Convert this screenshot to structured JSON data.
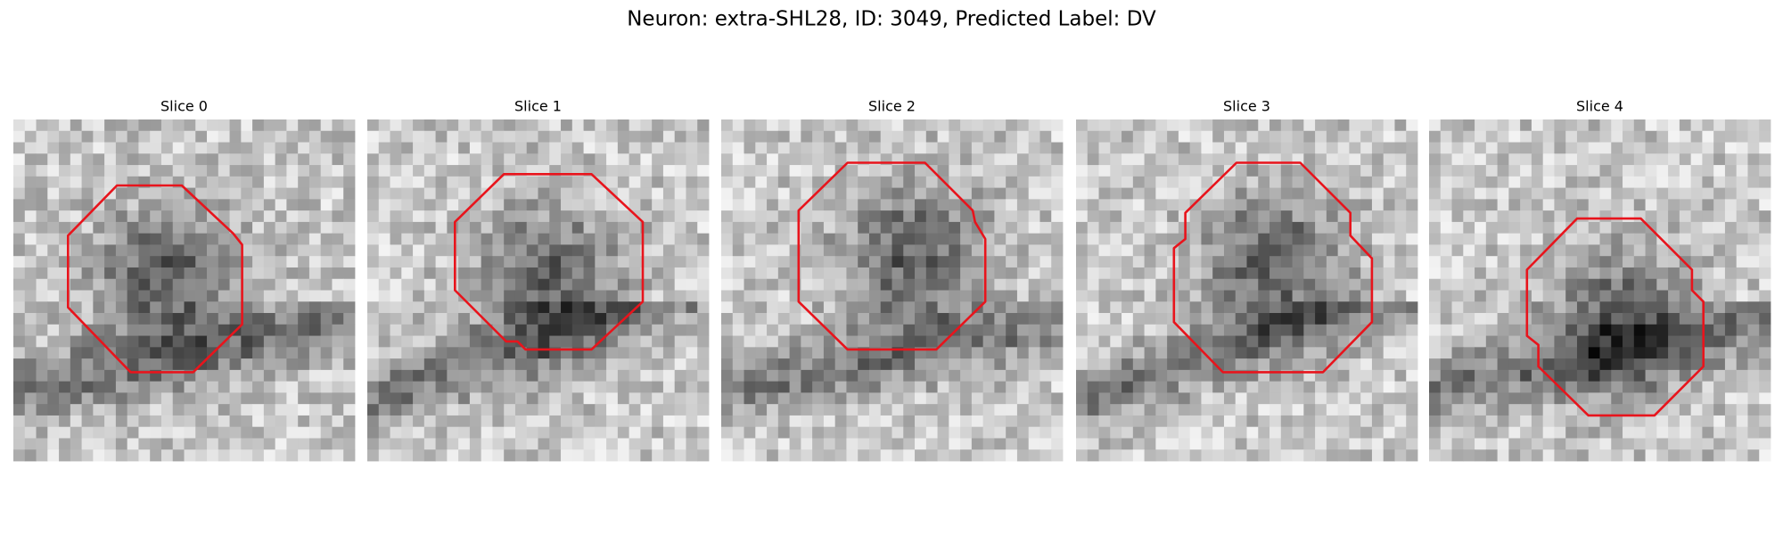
{
  "title": "Neuron: extra-SHL28, ID: 3049, Predicted Label: DV",
  "panels": [
    {
      "title": "Slice 0"
    },
    {
      "title": "Slice 1"
    },
    {
      "title": "Slice 2"
    },
    {
      "title": "Slice 3"
    },
    {
      "title": "Slice 4"
    }
  ]
}
